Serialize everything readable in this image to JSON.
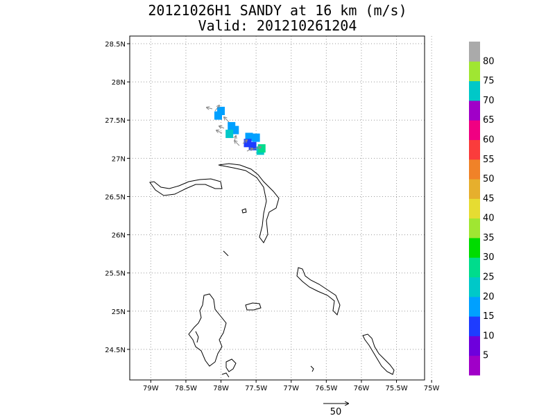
{
  "title": {
    "line1": "20121026H1 SANDY at 16 km (m/s)",
    "line2": "Valid: 201210261204"
  },
  "axes": {
    "lon_labels": [
      "79W",
      "78.5W",
      "78W",
      "77.5W",
      "77W",
      "76.5W",
      "76W",
      "75.5W",
      "75W"
    ],
    "lat_labels": [
      "24.5N",
      "25N",
      "25.5N",
      "26N",
      "26.5N",
      "27N",
      "27.5N",
      "28N",
      "28.5N"
    ],
    "lon_range": [
      -79.3,
      -75.1
    ],
    "lat_range": [
      24.1,
      28.6
    ],
    "grid": true
  },
  "colorbar": {
    "labels": [
      "5",
      "10",
      "15",
      "20",
      "25",
      "30",
      "35",
      "40",
      "45",
      "50",
      "55",
      "60",
      "65",
      "70",
      "75",
      "80"
    ],
    "colors": [
      "#a000c8",
      "#6e00dc",
      "#1e3cff",
      "#00a0ff",
      "#00c8c8",
      "#00dc8c",
      "#00dc00",
      "#a0e632",
      "#e6dc32",
      "#e6af2d",
      "#f08228",
      "#fa3c3c",
      "#f00082",
      "#a000c8",
      "#00c8c8",
      "#a0e632",
      "#aaaaaa"
    ]
  },
  "vector_scale": {
    "label": "50"
  },
  "wind_cells": [
    {
      "lat": 27.62,
      "lon": -78.0,
      "speed": 15
    },
    {
      "lat": 27.56,
      "lon": -78.04,
      "speed": 15
    },
    {
      "lat": 27.42,
      "lon": -77.85,
      "speed": 15
    },
    {
      "lat": 27.37,
      "lon": -77.8,
      "speed": 15
    },
    {
      "lat": 27.32,
      "lon": -77.88,
      "speed": 20
    },
    {
      "lat": 27.28,
      "lon": -77.6,
      "speed": 15
    },
    {
      "lat": 27.27,
      "lon": -77.5,
      "speed": 15
    },
    {
      "lat": 27.2,
      "lon": -77.62,
      "speed": 10
    },
    {
      "lat": 27.16,
      "lon": -77.55,
      "speed": 10
    },
    {
      "lat": 27.1,
      "lon": -77.44,
      "speed": 20
    },
    {
      "lat": 27.13,
      "lon": -77.42,
      "speed": 25
    }
  ]
}
